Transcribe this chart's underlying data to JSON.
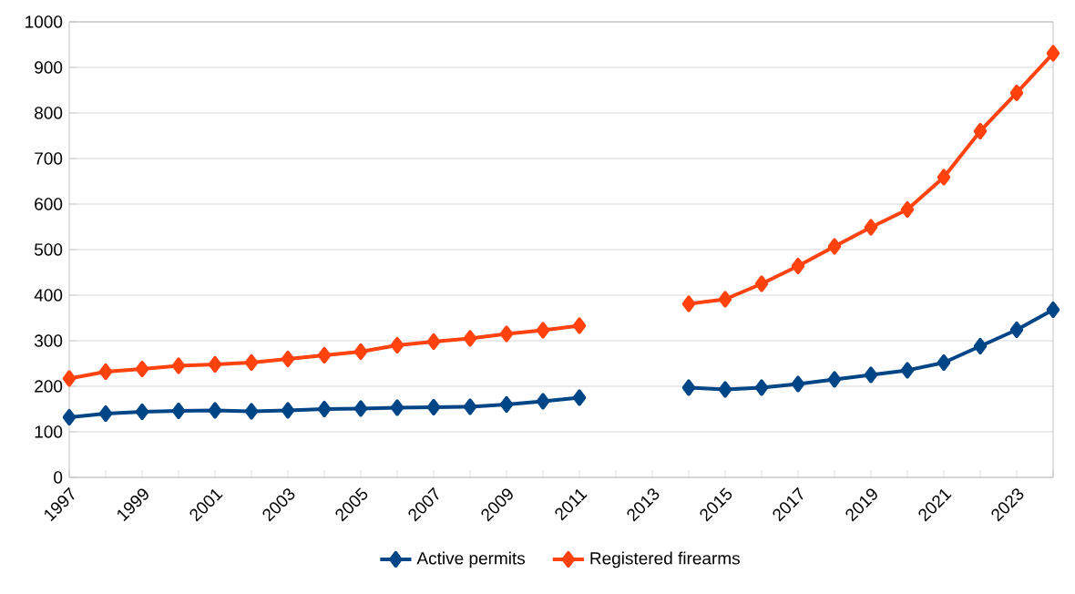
{
  "chart_data": {
    "type": "line",
    "categories": [
      "1997",
      null,
      "1999",
      null,
      "2001",
      null,
      "2003",
      null,
      "2005",
      null,
      "2007",
      null,
      "2009",
      null,
      "2011",
      null,
      "2013",
      null,
      "2015",
      null,
      "2017",
      null,
      "2019",
      null,
      "2021",
      null,
      "2023",
      null
    ],
    "series": [
      {
        "name": "Active permits",
        "color": "#004586",
        "values": [
          132,
          140,
          144,
          146,
          147,
          145,
          147,
          150,
          151,
          153,
          154,
          155,
          160,
          167,
          175,
          null,
          null,
          197,
          193,
          197,
          205,
          215,
          225,
          235,
          252,
          288,
          324,
          368
        ]
      },
      {
        "name": "Registered firearms",
        "color": "#ff420e",
        "values": [
          217,
          232,
          238,
          245,
          248,
          252,
          260,
          268,
          276,
          290,
          298,
          305,
          315,
          323,
          333,
          null,
          null,
          381,
          391,
          425,
          464,
          507,
          549,
          588,
          659,
          760,
          844,
          931
        ]
      }
    ],
    "ylim": [
      0,
      1000
    ],
    "yticks": [
      0,
      100,
      200,
      300,
      400,
      500,
      600,
      700,
      800,
      900,
      1000
    ],
    "grid": "y",
    "legend": "bottom",
    "marker": "diamond",
    "line_style": "solid"
  }
}
